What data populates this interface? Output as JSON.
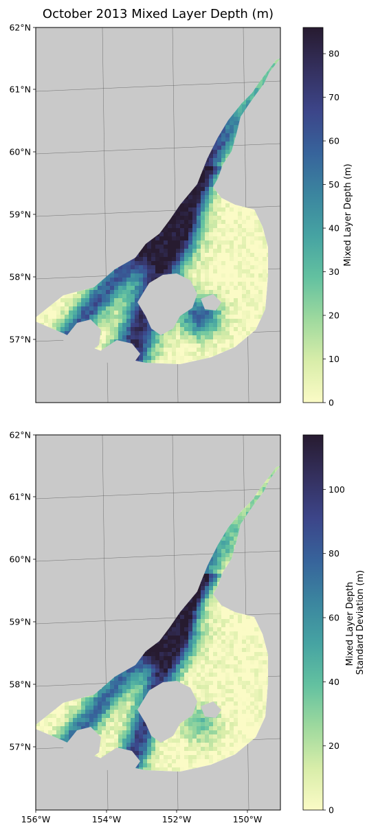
{
  "figure": {
    "title": "October 2013 Mixed Layer Depth (m)"
  },
  "colors": {
    "land": "#c9c9c9",
    "ocean_background": "#ffffff",
    "colormap": [
      "#fbfbc6",
      "#d8eda9",
      "#9ed99e",
      "#63c1a0",
      "#46a3a2",
      "#3b859f",
      "#37639b",
      "#3c4589",
      "#34305e",
      "#271b30"
    ]
  },
  "chart_data": [
    {
      "type": "heatmap",
      "panel": "top",
      "title": "October 2013 Mixed Layer Depth (m)",
      "lon_range": [
        -156,
        -149
      ],
      "lat_range": [
        56,
        62
      ],
      "lat_ticks": [
        "57°N",
        "58°N",
        "59°N",
        "60°N",
        "61°N",
        "62°N"
      ],
      "lon_ticks": [],
      "colorbar": {
        "label": "Mixed Layer Depth (m)",
        "range": [
          0,
          86
        ],
        "ticks": [
          0,
          10,
          20,
          30,
          40,
          50,
          60,
          70,
          80
        ]
      }
    },
    {
      "type": "heatmap",
      "panel": "bottom",
      "lon_range": [
        -156,
        -149
      ],
      "lat_range": [
        56,
        62
      ],
      "lat_ticks": [
        "57°N",
        "58°N",
        "59°N",
        "60°N",
        "61°N",
        "62°N"
      ],
      "lon_ticks": [
        "156°W",
        "154°W",
        "152°W",
        "150°W"
      ],
      "colorbar": {
        "label_line1": "Mixed Layer Depth",
        "label_line2": "Standard Deviation (m)",
        "range": [
          0,
          117
        ],
        "ticks": [
          0,
          20,
          40,
          60,
          80,
          100
        ]
      }
    }
  ]
}
